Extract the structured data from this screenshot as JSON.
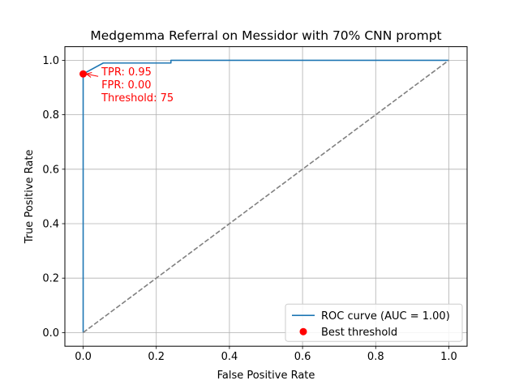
{
  "chart_data": {
    "type": "line",
    "title": "Medgemma Referral on Messidor with 70% CNN prompt",
    "xlabel": "False Positive Rate",
    "ylabel": "True Positive Rate",
    "xlim": [
      -0.05,
      1.05
    ],
    "ylim": [
      -0.05,
      1.05
    ],
    "xticks": [
      0.0,
      0.2,
      0.4,
      0.6,
      0.8,
      1.0
    ],
    "yticks": [
      0.0,
      0.2,
      0.4,
      0.6,
      0.8,
      1.0
    ],
    "xtick_labels": [
      "0.0",
      "0.2",
      "0.4",
      "0.6",
      "0.8",
      "1.0"
    ],
    "ytick_labels": [
      "0.0",
      "0.2",
      "0.4",
      "0.6",
      "0.8",
      "1.0"
    ],
    "grid": true,
    "legend_position": "lower-right",
    "series": [
      {
        "name": "ROC curve (AUC = 1.00)",
        "color": "#1f77b4",
        "style": "solid",
        "x": [
          0.0,
          0.0,
          0.0,
          0.055,
          0.24,
          0.24,
          0.24,
          1.0
        ],
        "y": [
          0.0,
          0.94,
          0.95,
          0.99,
          0.99,
          0.995,
          1.0,
          1.0
        ]
      },
      {
        "name": "",
        "color": "#808080",
        "style": "dashed",
        "x": [
          0.0,
          1.0
        ],
        "y": [
          0.0,
          1.0
        ]
      }
    ],
    "points": [
      {
        "name": "Best threshold",
        "x": 0.0,
        "y": 0.95,
        "color": "#ff0000"
      }
    ],
    "annotation": {
      "lines": [
        "TPR: 0.95",
        "FPR: 0.00",
        "Threshold: 75"
      ],
      "color": "#ff0000",
      "target": {
        "x": 0.0,
        "y": 0.95
      }
    }
  }
}
